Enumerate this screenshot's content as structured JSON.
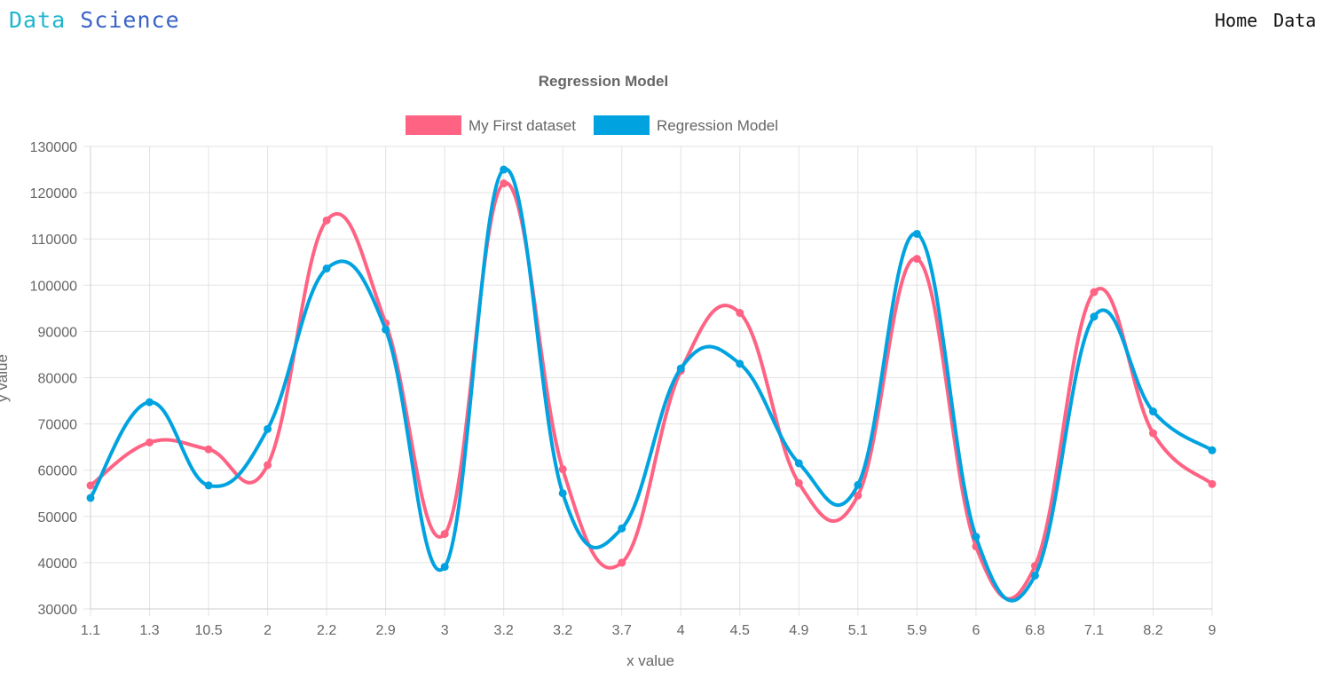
{
  "nav": {
    "brand_part1": "Data",
    "brand_part2": "Science",
    "links": [
      "Home",
      "Data"
    ]
  },
  "chart_data": {
    "type": "line",
    "title": "Regression Model",
    "xlabel": "x value",
    "ylabel": "y value",
    "ylim": [
      30000,
      130000
    ],
    "yticks": [
      30000,
      40000,
      50000,
      60000,
      70000,
      80000,
      90000,
      100000,
      110000,
      120000,
      130000
    ],
    "grid": true,
    "legend_position": "top-center",
    "categories": [
      "1.1",
      "1.3",
      "10.5",
      "2",
      "2.2",
      "2.9",
      "3",
      "3.2",
      "3.2",
      "3.7",
      "4",
      "4.5",
      "4.9",
      "5.1",
      "5.9",
      "6",
      "6.8",
      "7.1",
      "8.2",
      "9"
    ],
    "series": [
      {
        "name": "My First dataset",
        "color": "#ff6384",
        "values": [
          56700,
          66000,
          64500,
          61100,
          114000,
          91800,
          46200,
          122000,
          60200,
          40000,
          81500,
          94000,
          57200,
          54500,
          105700,
          43500,
          39300,
          98500,
          68000,
          57000
        ]
      },
      {
        "name": "Regression Model",
        "color": "#00a3e0",
        "values": [
          54000,
          74700,
          56700,
          68900,
          103600,
          90400,
          39100,
          125000,
          55000,
          47400,
          82000,
          83000,
          61500,
          56800,
          111100,
          45600,
          37200,
          93200,
          72700,
          64300
        ]
      }
    ]
  }
}
